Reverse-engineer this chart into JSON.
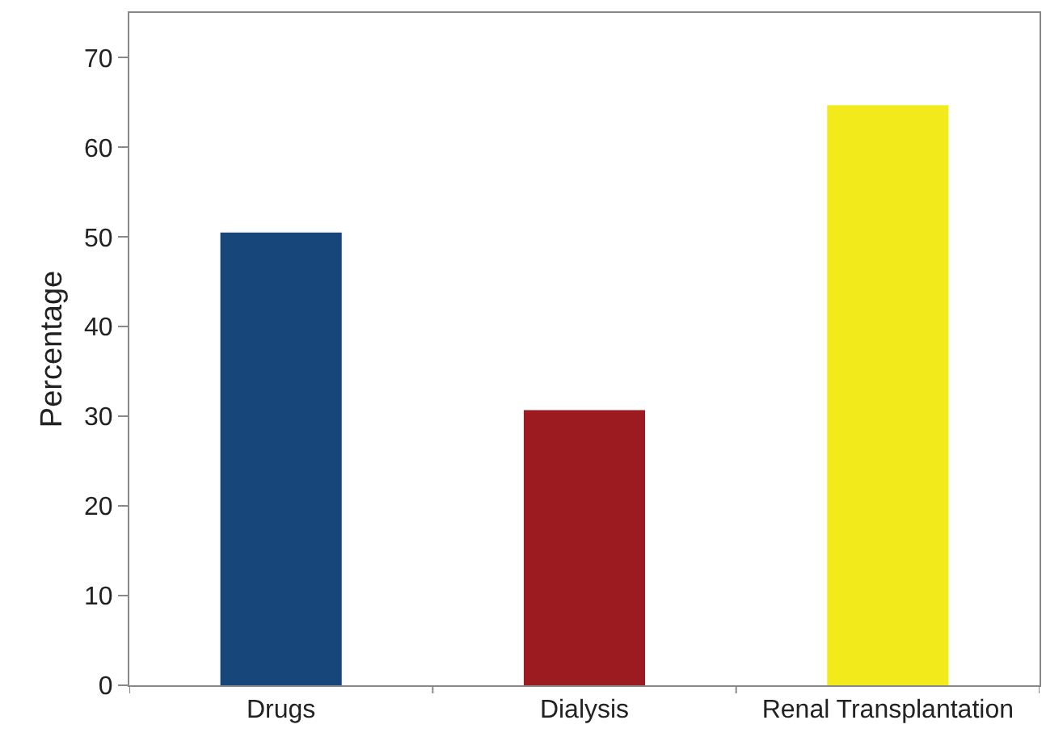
{
  "chart_data": {
    "type": "bar",
    "ylabel": "Percentage",
    "categories": [
      "Drugs",
      "Dialysis",
      "Renal Transplantation"
    ],
    "values": [
      50.5,
      30.7,
      64.7
    ],
    "colors": [
      "#17477a",
      "#9b1b21",
      "#f2ea1a"
    ],
    "ylim": [
      0,
      75
    ],
    "yticks": [
      0,
      10,
      20,
      30,
      40,
      50,
      60,
      70
    ],
    "grid": false
  }
}
